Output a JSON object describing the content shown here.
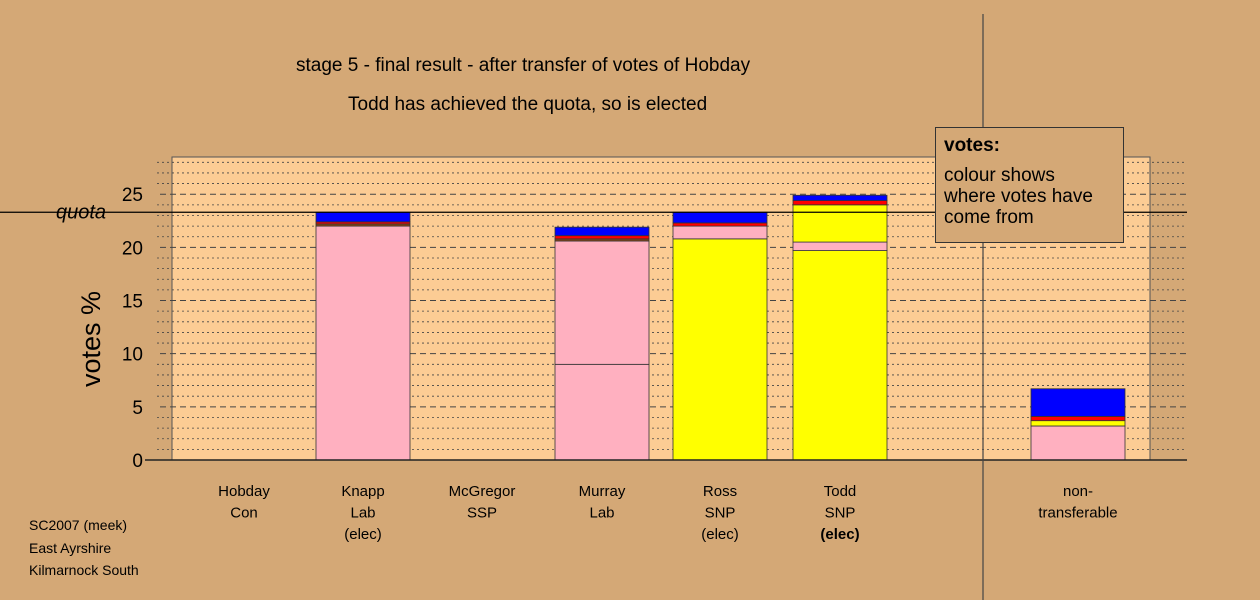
{
  "title": {
    "line1": "stage 5 - final result - after transfer of votes of Hobday",
    "line2": "Todd has achieved the quota, so is elected"
  },
  "legend": {
    "heading": "votes:",
    "body": "colour shows where votes have come from"
  },
  "footer": [
    "SC2007 (meek)",
    "East Ayrshire",
    "Kilmarnock South"
  ],
  "colors": {
    "background": "#d4a876",
    "plot_area": "#fccc94",
    "Lab": "#ffb0c0",
    "SNP": "#ffff00",
    "Con": "#0000ff",
    "SSP": "#ff0000",
    "other": "#8b4513"
  },
  "chart_data": {
    "type": "bar",
    "stacked": true,
    "ylabel": "votes %",
    "ylim": [
      0,
      28.5
    ],
    "yticks": [
      0,
      5,
      10,
      15,
      20,
      25
    ],
    "quota_label": "quota",
    "quota": 23.3,
    "grid": true,
    "categories": [
      {
        "lines": [
          "Hobday",
          "Con"
        ],
        "bold_last": false
      },
      {
        "lines": [
          "Knapp",
          "Lab",
          "(elec)"
        ],
        "bold_last": false
      },
      {
        "lines": [
          "McGregor",
          "SSP"
        ],
        "bold_last": false
      },
      {
        "lines": [
          "Murray",
          "Lab"
        ],
        "bold_last": false
      },
      {
        "lines": [
          "Ross",
          "SNP",
          "(elec)"
        ],
        "bold_last": false
      },
      {
        "lines": [
          "Todd",
          "SNP",
          "(elec)"
        ],
        "bold_last": true
      },
      {
        "lines": [
          "non-",
          "transferable"
        ],
        "bold_last": false
      }
    ],
    "stacks": [
      [],
      [
        {
          "value": 22.0,
          "color": "#ffb0c0"
        },
        {
          "value": 0.2,
          "color": "#8b4513"
        },
        {
          "value": 0.2,
          "color": "#ff0000"
        },
        {
          "value": 0.9,
          "color": "#0000ff"
        }
      ],
      [],
      [
        {
          "value": 9.0,
          "color": "#ffb0c0"
        },
        {
          "value": 11.6,
          "color": "#ffb0c0"
        },
        {
          "value": 0.2,
          "color": "#8b4513"
        },
        {
          "value": 0.3,
          "color": "#ff0000"
        },
        {
          "value": 0.8,
          "color": "#0000ff"
        }
      ],
      [
        {
          "value": 20.8,
          "color": "#ffff00"
        },
        {
          "value": 1.2,
          "color": "#ffb0c0"
        },
        {
          "value": 0.3,
          "color": "#ff0000"
        },
        {
          "value": 1.0,
          "color": "#0000ff"
        }
      ],
      [
        {
          "value": 19.7,
          "color": "#ffff00"
        },
        {
          "value": 0.8,
          "color": "#ffb0c0"
        },
        {
          "value": 3.5,
          "color": "#ffff00"
        },
        {
          "value": 0.4,
          "color": "#ff0000"
        },
        {
          "value": 0.5,
          "color": "#0000ff"
        }
      ],
      [
        {
          "value": 3.2,
          "color": "#ffb0c0"
        },
        {
          "value": 0.5,
          "color": "#ffff00"
        },
        {
          "value": 0.4,
          "color": "#ff0000"
        },
        {
          "value": 2.6,
          "color": "#0000ff"
        }
      ]
    ]
  }
}
